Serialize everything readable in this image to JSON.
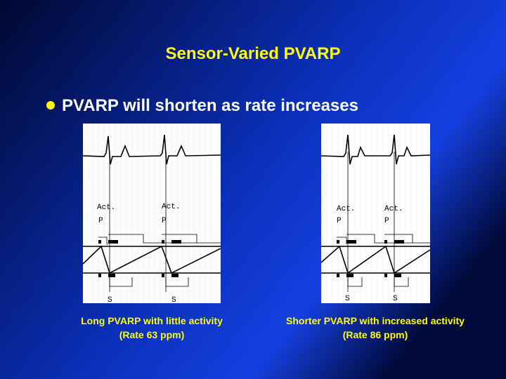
{
  "title": "Sensor-Varied PVARP",
  "bullets": [
    "PVARP will shorten as rate increases"
  ],
  "figures": [
    {
      "labels": {
        "act": [
          "Act.",
          "Act."
        ],
        "p": [
          "P",
          "P"
        ],
        "s": [
          "S",
          "S"
        ]
      },
      "caption": [
        "Long PVARP with little activity",
        "(Rate 63 ppm)"
      ]
    },
    {
      "labels": {
        "act": [
          "Act.",
          "Act."
        ],
        "p": [
          "P",
          "P"
        ],
        "s": [
          "S",
          "S"
        ]
      },
      "caption": [
        "Shorter PVARP with increased activity",
        "(Rate 86 ppm)"
      ]
    }
  ]
}
